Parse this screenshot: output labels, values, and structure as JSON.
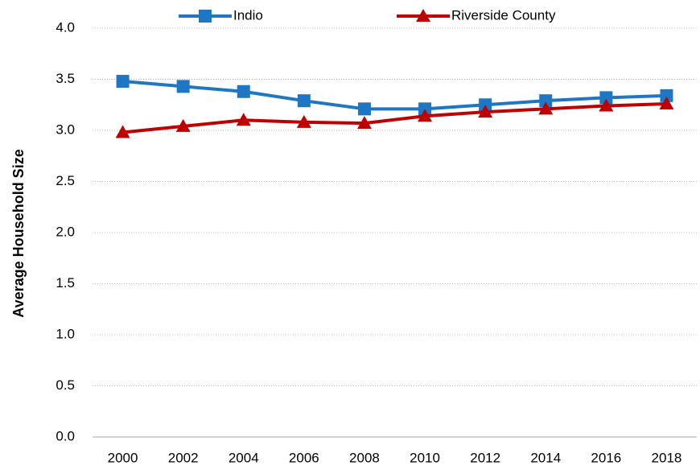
{
  "chart_data": {
    "type": "line",
    "y_label": "Average Household Size",
    "categories": [
      "2000",
      "2002",
      "2004",
      "2006",
      "2008",
      "2010",
      "2012",
      "2014",
      "2016",
      "2018"
    ],
    "series": [
      {
        "name": "Indio",
        "color": "#1f77c4",
        "marker": "square",
        "values": [
          3.48,
          3.43,
          3.38,
          3.29,
          3.21,
          3.21,
          3.25,
          3.29,
          3.32,
          3.34
        ]
      },
      {
        "name": "Riverside County",
        "color": "#c00000",
        "marker": "triangle",
        "values": [
          2.98,
          3.04,
          3.1,
          3.08,
          3.07,
          3.14,
          3.18,
          3.21,
          3.24,
          3.26
        ]
      }
    ],
    "ylim": [
      0,
      4
    ],
    "yticks": [
      {
        "value": 0,
        "label": "0.0"
      },
      0.5,
      {
        "value": 1,
        "label": "1.0"
      },
      1.5,
      {
        "value": 2,
        "label": "2.0"
      },
      2.5,
      {
        "value": 3,
        "label": "3.0"
      },
      3.5,
      {
        "value": 4,
        "label": "4.0"
      }
    ],
    "grid": true,
    "legend": "top"
  }
}
